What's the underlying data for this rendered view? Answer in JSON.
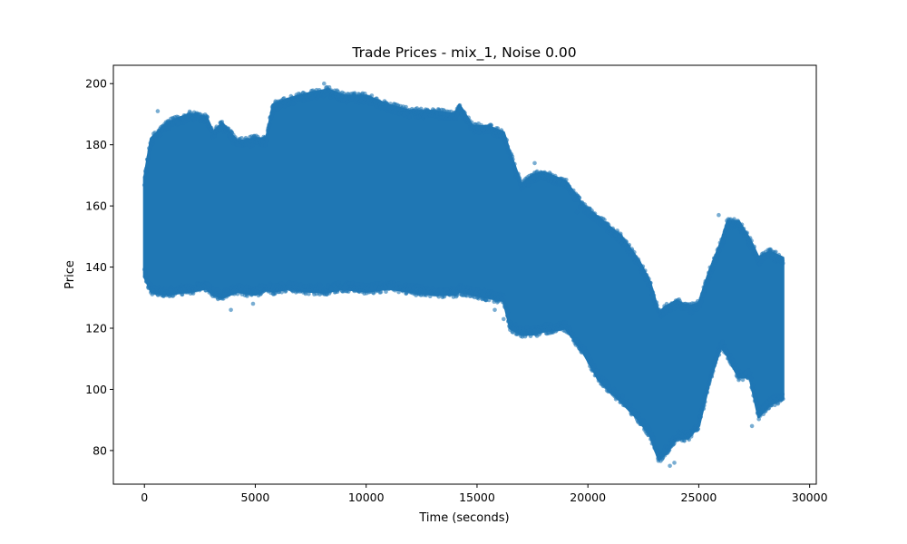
{
  "chart_data": {
    "type": "scatter",
    "title": "Trade Prices - mix_1, Noise 0.00",
    "xlabel": "Time (seconds)",
    "ylabel": "Price",
    "xlim": [
      -1400,
      30300
    ],
    "ylim": [
      69,
      206
    ],
    "xticks": [
      0,
      5000,
      10000,
      15000,
      20000,
      25000,
      30000
    ],
    "xtick_labels": [
      "0",
      "5000",
      "10000",
      "15000",
      "20000",
      "25000",
      "30000"
    ],
    "yticks": [
      80,
      100,
      120,
      140,
      160,
      180,
      200
    ],
    "ytick_labels": [
      "80",
      "100",
      "120",
      "140",
      "160",
      "180",
      "200"
    ],
    "grid": false,
    "legend": "none",
    "color": "#1f77b4",
    "marker_alpha": 0.6,
    "band": {
      "x": [
        0,
        300,
        1000,
        2000,
        2800,
        3100,
        3500,
        4200,
        5000,
        5500,
        5800,
        6500,
        7500,
        8300,
        9000,
        10000,
        11000,
        12000,
        13000,
        14000,
        14200,
        14800,
        15500,
        16200,
        16500,
        17000,
        17500,
        18000,
        19000,
        19800,
        20500,
        21500,
        22300,
        22800,
        23200,
        23500,
        24000,
        24500,
        25000,
        25500,
        26000,
        26300,
        26800,
        27300,
        27700,
        28200,
        28800
      ],
      "upper": [
        169,
        182,
        187,
        190,
        189,
        184,
        187,
        181,
        182,
        182,
        193,
        195,
        197,
        198,
        196,
        196,
        193,
        191,
        191,
        190,
        193,
        186,
        186,
        184,
        177,
        167,
        170,
        171,
        168,
        160,
        156,
        150,
        142,
        135,
        125,
        127,
        129,
        127,
        128,
        139,
        148,
        155,
        155,
        149,
        143,
        145,
        143
      ],
      "lower": [
        137,
        132,
        131,
        132,
        133,
        131,
        130,
        132,
        131,
        133,
        132,
        133,
        132,
        132,
        133,
        132,
        133,
        132,
        131,
        131,
        132,
        131,
        130,
        129,
        120,
        118,
        118,
        119,
        120,
        112,
        103,
        96,
        90,
        85,
        77,
        79,
        84,
        84,
        88,
        103,
        114,
        111,
        104,
        104,
        91,
        95,
        97
      ]
    },
    "outliers": [
      {
        "x": 3900,
        "y": 126
      },
      {
        "x": 4900,
        "y": 128
      },
      {
        "x": 15800,
        "y": 126
      },
      {
        "x": 16200,
        "y": 123
      },
      {
        "x": 23700,
        "y": 75
      },
      {
        "x": 23900,
        "y": 76
      },
      {
        "x": 27400,
        "y": 88
      },
      {
        "x": 17600,
        "y": 174
      },
      {
        "x": 8100,
        "y": 200
      },
      {
        "x": 600,
        "y": 191
      },
      {
        "x": 19500,
        "y": 158
      },
      {
        "x": 25900,
        "y": 157
      }
    ]
  }
}
